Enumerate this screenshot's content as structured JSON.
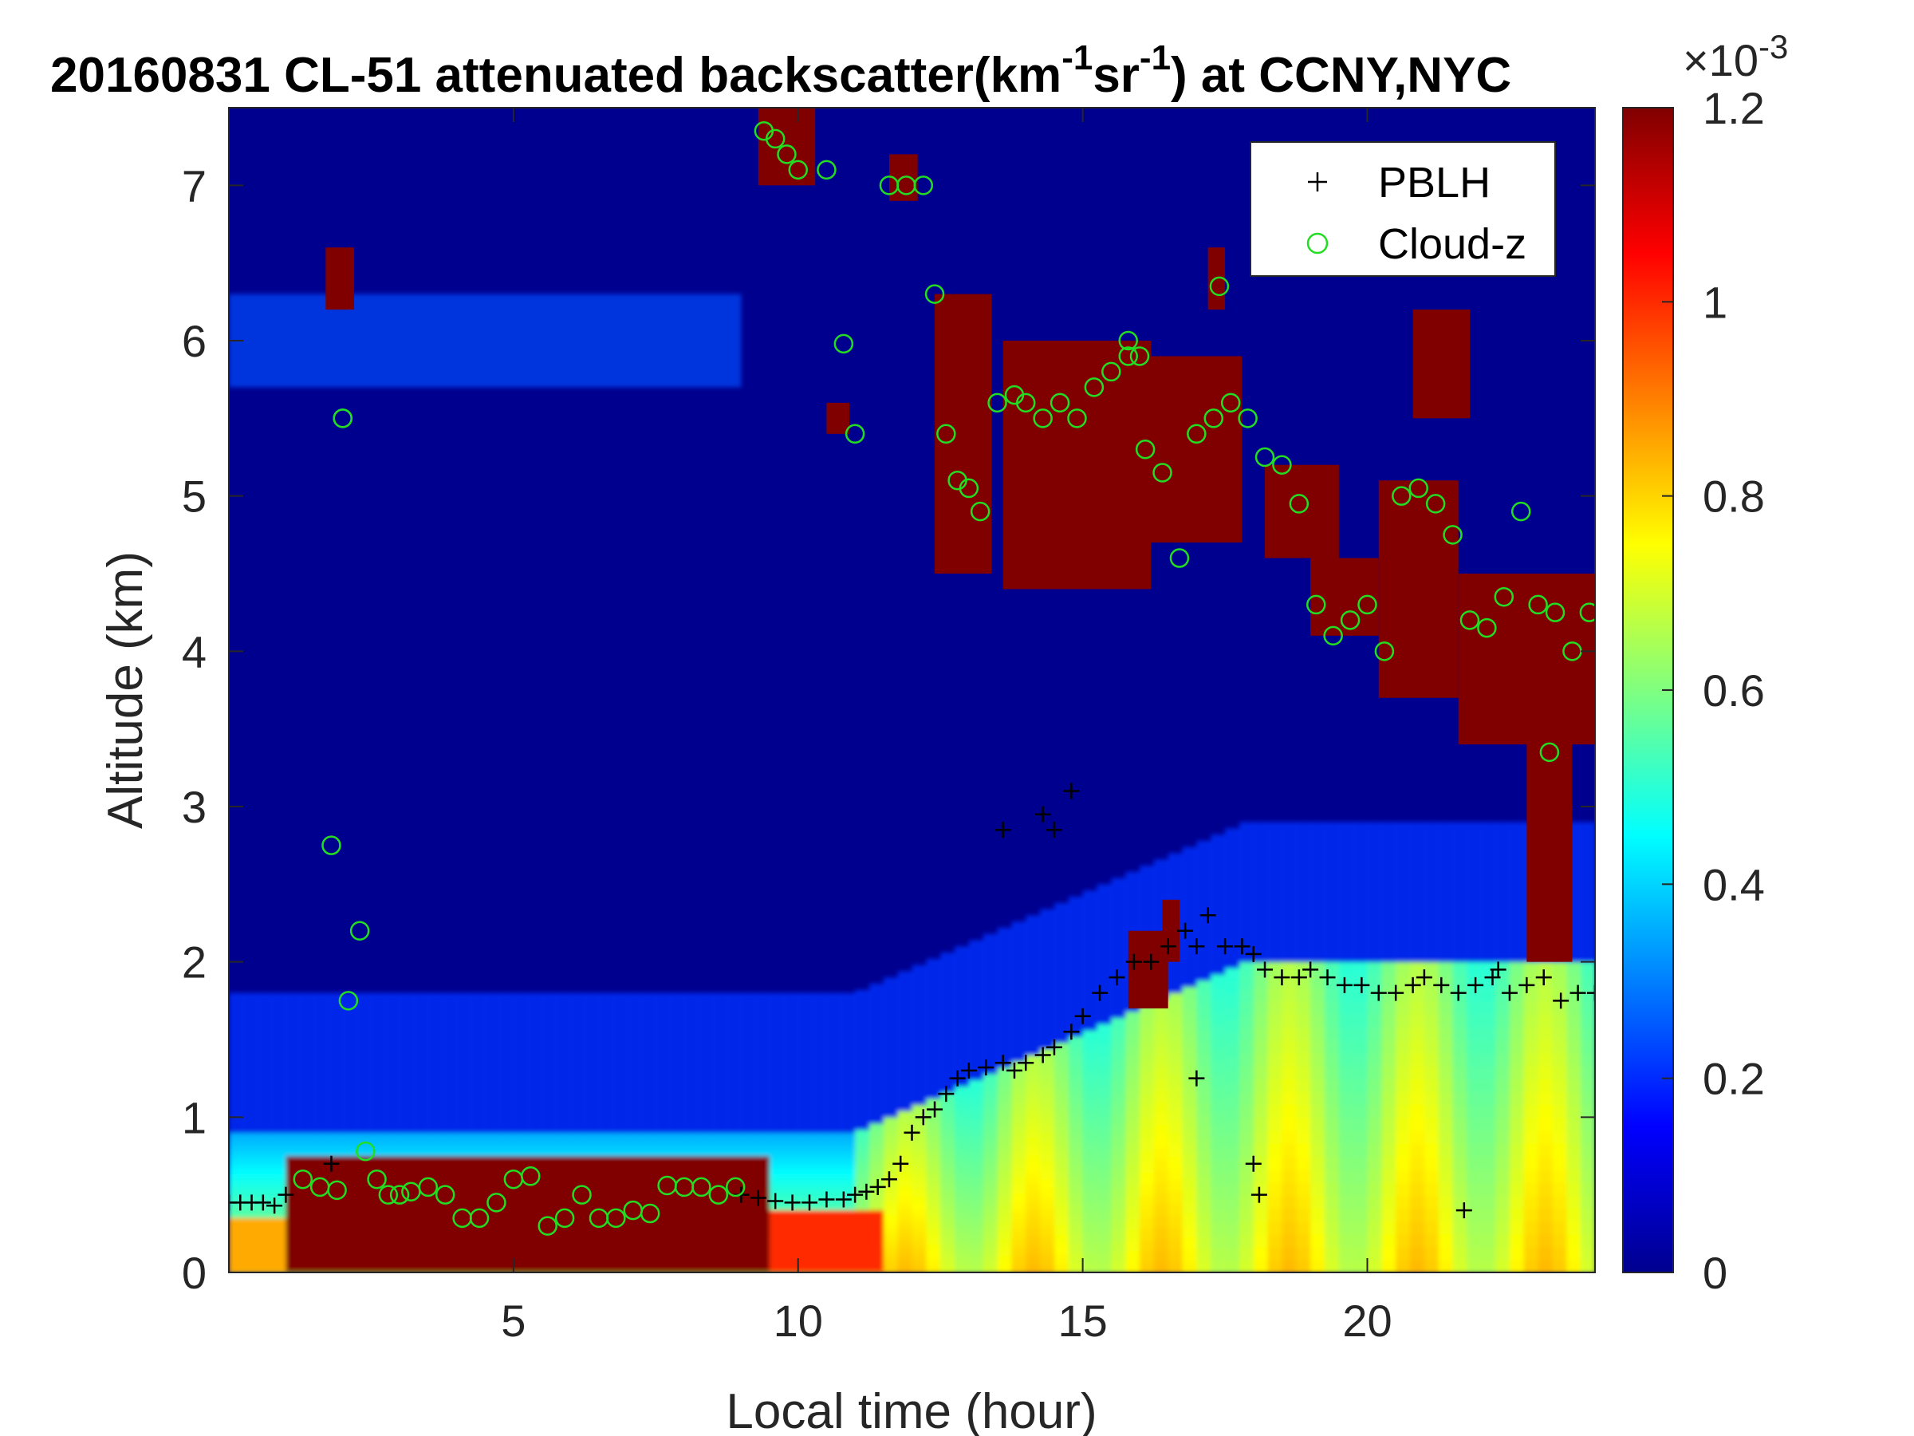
{
  "chart_data": {
    "type": "heatmap",
    "title": {
      "prefix": "20160831  CL-51 attenuated backscatter(km",
      "exp1": "-1",
      "middle": "sr",
      "exp2": "-1",
      "suffix": ") at CCNY,NYC"
    },
    "xlabel": "Local time (hour)",
    "ylabel": "Altitude (km)",
    "xlim": [
      0,
      24
    ],
    "ylim": [
      0,
      7.5
    ],
    "xticks": [
      5,
      10,
      15,
      20
    ],
    "yticks": [
      0,
      1,
      2,
      3,
      4,
      5,
      6,
      7
    ],
    "colorbar": {
      "colormap": "jet",
      "clim": [
        0,
        0.0012
      ],
      "ticks": [
        "0",
        "0.2",
        "0.4",
        "0.6",
        "0.8",
        "1",
        "1.2"
      ],
      "tick_values": [
        0,
        0.2,
        0.4,
        0.6,
        0.8,
        1.0,
        1.2
      ],
      "multiplier_base": "×10",
      "multiplier_exp": "-3"
    },
    "legend": {
      "placement": "top-right",
      "entries": [
        {
          "name": "PBLH",
          "marker": "+",
          "color": "#000000"
        },
        {
          "name": "Cloud-z",
          "marker": "o",
          "color": "#22dd22"
        }
      ]
    },
    "field_estimate_notes_omitted": true,
    "field": {
      "cloud_patches": [
        {
          "t0": 1.7,
          "t1": 2.2,
          "z0": 6.2,
          "z1": 6.6,
          "v": 1.25
        },
        {
          "t0": 9.3,
          "t1": 10.3,
          "z0": 7.0,
          "z1": 7.5,
          "v": 1.25
        },
        {
          "t0": 11.6,
          "t1": 12.1,
          "z0": 6.9,
          "z1": 7.2,
          "v": 1.25
        },
        {
          "t0": 10.5,
          "t1": 10.9,
          "z0": 5.4,
          "z1": 5.6,
          "v": 1.2
        },
        {
          "t0": 12.4,
          "t1": 13.4,
          "z0": 4.5,
          "z1": 6.3,
          "v": 1.25
        },
        {
          "t0": 13.6,
          "t1": 16.2,
          "z0": 4.4,
          "z1": 6.0,
          "v": 1.25
        },
        {
          "t0": 16.0,
          "t1": 17.8,
          "z0": 4.7,
          "z1": 5.9,
          "v": 1.2
        },
        {
          "t0": 17.2,
          "t1": 17.5,
          "z0": 6.2,
          "z1": 6.6,
          "v": 1.2
        },
        {
          "t0": 18.2,
          "t1": 19.5,
          "z0": 4.6,
          "z1": 5.2,
          "v": 1.2
        },
        {
          "t0": 19.0,
          "t1": 20.2,
          "z0": 4.1,
          "z1": 4.6,
          "v": 1.25
        },
        {
          "t0": 20.2,
          "t1": 21.6,
          "z0": 3.7,
          "z1": 5.1,
          "v": 1.25
        },
        {
          "t0": 20.8,
          "t1": 21.8,
          "z0": 5.5,
          "z1": 6.2,
          "v": 1.25
        },
        {
          "t0": 21.6,
          "t1": 24.0,
          "z0": 3.4,
          "z1": 4.5,
          "v": 1.25
        },
        {
          "t0": 22.8,
          "t1": 23.6,
          "z0": 2.0,
          "z1": 3.5,
          "v": 1.25
        },
        {
          "t0": 15.8,
          "t1": 16.5,
          "z0": 1.7,
          "z1": 2.2,
          "v": 1.2
        },
        {
          "t0": 16.4,
          "t1": 16.7,
          "z0": 2.0,
          "z1": 2.4,
          "v": 1.2
        }
      ],
      "surface_layer": [
        {
          "t0": 1.0,
          "t1": 9.5,
          "z0": 0.0,
          "z1": 0.75,
          "v": 1.25
        },
        {
          "t0": 9.5,
          "t1": 11.5,
          "z0": 0.0,
          "z1": 0.4,
          "v": 1.0
        },
        {
          "t0": 0.0,
          "t1": 1.0,
          "z0": 0.0,
          "z1": 0.35,
          "v": 0.85
        }
      ]
    },
    "series": [
      {
        "name": "PBLH",
        "x": [
          0.0,
          0.2,
          0.4,
          0.6,
          0.8,
          1.0,
          1.8,
          9.0,
          9.3,
          9.6,
          9.9,
          10.2,
          10.5,
          10.8,
          11.0,
          11.2,
          11.4,
          11.6,
          11.8,
          12.0,
          12.2,
          12.4,
          12.6,
          12.8,
          13.0,
          13.3,
          13.6,
          13.8,
          14.0,
          14.3,
          14.5,
          14.8,
          15.0,
          15.3,
          15.6,
          15.9,
          16.2,
          16.5,
          16.8,
          17.0,
          17.2,
          17.5,
          17.8,
          18.0,
          18.2,
          18.5,
          18.8,
          19.0,
          19.3,
          19.6,
          19.9,
          20.2,
          20.5,
          20.8,
          21.0,
          21.3,
          21.6,
          21.9,
          22.2,
          22.5,
          22.8,
          23.1,
          23.4,
          23.7,
          24.0,
          13.6,
          14.3,
          14.5,
          14.8,
          17.0,
          18.0,
          18.1,
          21.7,
          22.3
        ],
        "y": [
          0.45,
          0.45,
          0.45,
          0.45,
          0.43,
          0.5,
          0.7,
          0.5,
          0.48,
          0.46,
          0.45,
          0.45,
          0.47,
          0.47,
          0.5,
          0.52,
          0.55,
          0.6,
          0.7,
          0.9,
          1.0,
          1.05,
          1.15,
          1.25,
          1.3,
          1.32,
          1.35,
          1.3,
          1.35,
          1.4,
          1.45,
          1.55,
          1.65,
          1.8,
          1.9,
          2.0,
          2.0,
          2.1,
          2.2,
          2.1,
          2.3,
          2.1,
          2.1,
          2.05,
          1.95,
          1.9,
          1.9,
          1.95,
          1.9,
          1.85,
          1.85,
          1.8,
          1.8,
          1.85,
          1.9,
          1.85,
          1.8,
          1.85,
          1.9,
          1.8,
          1.85,
          1.9,
          1.75,
          1.8,
          1.8,
          2.85,
          2.95,
          2.85,
          3.1,
          1.25,
          0.7,
          0.5,
          0.4,
          1.95
        ],
        "color": "#000000",
        "marker": "+"
      },
      {
        "name": "Cloud-z",
        "x": [
          1.3,
          1.6,
          1.9,
          2.0,
          2.4,
          2.6,
          2.8,
          3.0,
          3.2,
          3.5,
          3.8,
          4.1,
          4.4,
          4.7,
          5.0,
          5.3,
          5.6,
          5.9,
          6.2,
          6.5,
          6.8,
          7.1,
          7.4,
          7.7,
          8.0,
          8.3,
          8.6,
          8.9,
          1.8,
          2.3,
          2.1,
          2.0,
          9.4,
          9.6,
          9.8,
          10.0,
          10.5,
          11.6,
          11.9,
          12.2,
          10.8,
          11.0,
          12.4,
          12.6,
          12.8,
          13.0,
          13.2,
          13.5,
          13.8,
          14.0,
          14.3,
          14.6,
          14.9,
          15.2,
          15.5,
          15.8,
          16.1,
          16.4,
          16.7,
          17.0,
          17.3,
          17.6,
          17.9,
          18.2,
          18.5,
          18.8,
          19.1,
          19.4,
          19.7,
          20.0,
          20.3,
          20.6,
          20.9,
          21.2,
          21.5,
          21.8,
          22.1,
          22.4,
          22.7,
          23.0,
          23.3,
          23.6,
          23.9,
          23.2,
          17.4,
          15.8,
          16.0
        ],
        "y": [
          0.6,
          0.55,
          0.53,
          5.5,
          0.78,
          0.6,
          0.5,
          0.5,
          0.52,
          0.55,
          0.5,
          0.35,
          0.35,
          0.45,
          0.6,
          0.62,
          0.3,
          0.35,
          0.5,
          0.35,
          0.35,
          0.4,
          0.38,
          0.56,
          0.55,
          0.55,
          0.5,
          0.55,
          2.75,
          2.2,
          1.75,
          5.5,
          7.35,
          7.3,
          7.2,
          7.1,
          7.1,
          7.0,
          7.0,
          7.0,
          5.98,
          5.4,
          6.3,
          5.4,
          5.1,
          5.05,
          4.9,
          5.6,
          5.65,
          5.6,
          5.5,
          5.6,
          5.5,
          5.7,
          5.8,
          6.0,
          5.3,
          5.15,
          4.6,
          5.4,
          5.5,
          5.6,
          5.5,
          5.25,
          5.2,
          4.95,
          4.3,
          4.1,
          4.2,
          4.3,
          4.0,
          5.0,
          5.05,
          4.95,
          4.75,
          4.2,
          4.15,
          4.35,
          4.9,
          4.3,
          4.25,
          4.0,
          4.25,
          3.35,
          6.35,
          5.9,
          5.9
        ],
        "color": "#22dd22",
        "marker": "o"
      }
    ]
  }
}
